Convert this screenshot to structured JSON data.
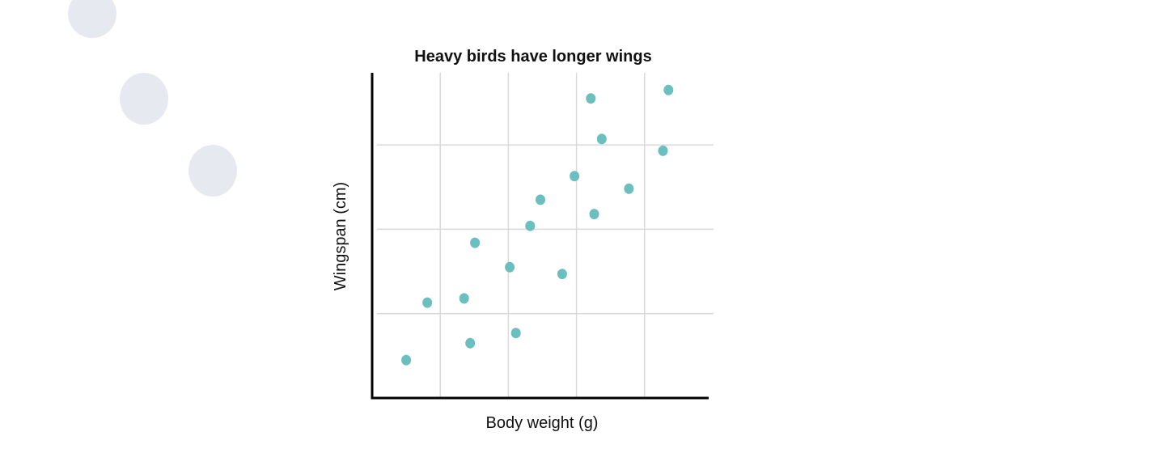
{
  "colors": {
    "background": "#ffffff",
    "decoration": "#e6e9ef",
    "point": "#6bbfbe",
    "grid": "#d9d9d9",
    "axis": "#000000"
  },
  "chart_data": {
    "type": "scatter",
    "title": "Heavy birds have longer wings",
    "xlabel": "Body weight (g)",
    "ylabel": "Wingspan (cm)",
    "grid": true,
    "tick_labels_shown": false,
    "xlim": [
      0,
      5
    ],
    "ylim": [
      0,
      4
    ],
    "x_gridlines": [
      1,
      2,
      3,
      4
    ],
    "y_gridlines": [
      1,
      2,
      3
    ],
    "points": [
      {
        "x": 0.5,
        "y": 0.45
      },
      {
        "x": 0.81,
        "y": 1.13
      },
      {
        "x": 1.44,
        "y": 0.65
      },
      {
        "x": 1.35,
        "y": 1.18
      },
      {
        "x": 1.51,
        "y": 1.84
      },
      {
        "x": 2.02,
        "y": 1.55
      },
      {
        "x": 2.11,
        "y": 0.77
      },
      {
        "x": 2.32,
        "y": 2.04
      },
      {
        "x": 2.47,
        "y": 2.35
      },
      {
        "x": 2.79,
        "y": 1.47
      },
      {
        "x": 2.97,
        "y": 2.63
      },
      {
        "x": 3.21,
        "y": 3.55
      },
      {
        "x": 3.26,
        "y": 2.18
      },
      {
        "x": 3.37,
        "y": 3.07
      },
      {
        "x": 3.77,
        "y": 2.48
      },
      {
        "x": 4.27,
        "y": 2.93
      },
      {
        "x": 4.35,
        "y": 3.65
      }
    ]
  }
}
